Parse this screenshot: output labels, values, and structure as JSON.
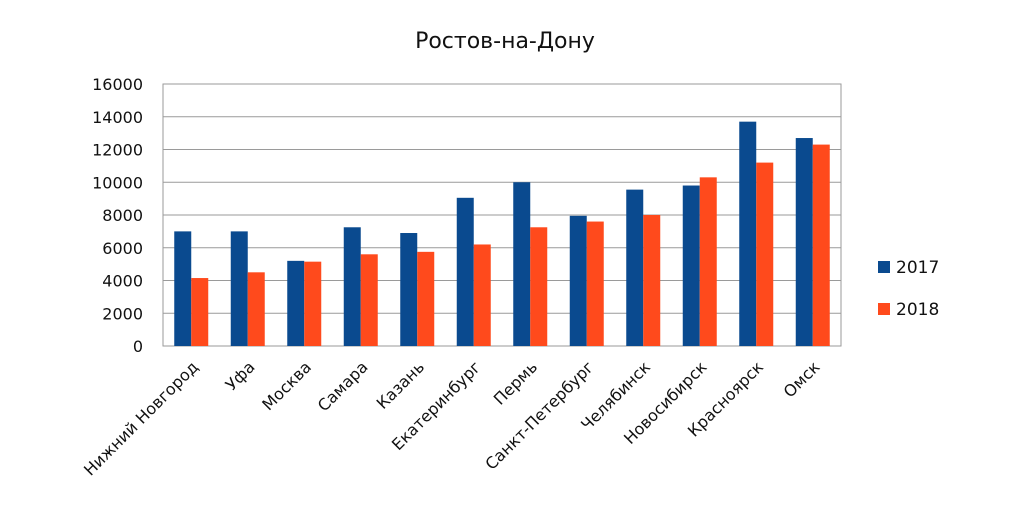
{
  "chart_data": {
    "type": "bar",
    "title": "Ростов-на-Дону",
    "categories": [
      "Нижний Новгород",
      "Уфа",
      "Москва",
      "Самара",
      "Казань",
      "Екатеринбург",
      "Пермь",
      "Санкт-Петербург",
      "Челябинск",
      "Новосибирск",
      "Красноярск",
      "Омск"
    ],
    "series": [
      {
        "name": "2017",
        "color": "#0a4a8f",
        "values": [
          7000,
          7000,
          5200,
          7250,
          6900,
          9050,
          10000,
          7950,
          9550,
          9800,
          13700,
          12700
        ]
      },
      {
        "name": "2018",
        "color": "#ff4a1c",
        "values": [
          4150,
          4500,
          5150,
          5600,
          5750,
          6200,
          7250,
          7600,
          8000,
          10300,
          11200,
          12300
        ]
      }
    ],
    "ylim": [
      0,
      16000
    ],
    "yticks": [
      0,
      2000,
      4000,
      6000,
      8000,
      10000,
      12000,
      14000,
      16000
    ],
    "grid": true,
    "legend_position": "right"
  }
}
